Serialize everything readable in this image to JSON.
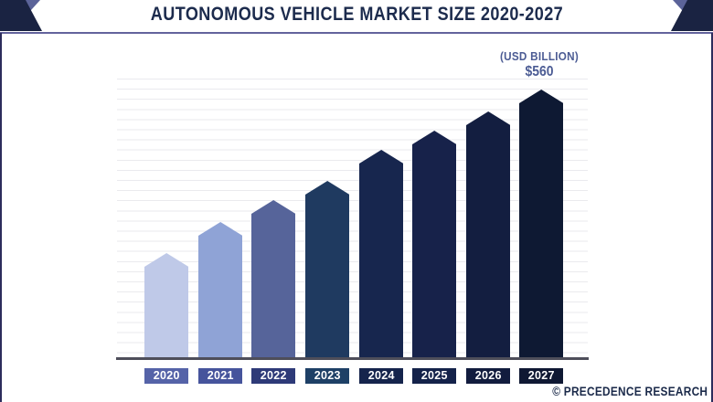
{
  "page": {
    "title": "AUTONOMOUS VEHICLE MARKET SIZE 2020-2027",
    "unit_note": "(USD BILLION)",
    "peak_value_label": "$560",
    "credit": "© PRECEDENCE RESEARCH"
  },
  "colors": {
    "title_text": "#1c2b4d",
    "underline": "#63639c",
    "corner_navy": "#1a2342",
    "corner_slate": "#5b6399",
    "gridline": "#eaeaee",
    "axis_line": "#4e4e5a",
    "annotation_text": "#4c5c94",
    "credit_text": "#1b2a4a"
  },
  "chart_data": {
    "type": "bar",
    "title": "AUTONOMOUS VEHICLE MARKET SIZE 2020-2027",
    "unit": "USD Billion",
    "categories": [
      "2020",
      "2021",
      "2022",
      "2023",
      "2024",
      "2025",
      "2026",
      "2027"
    ],
    "values": [
      220,
      285,
      330,
      370,
      435,
      475,
      515,
      560
    ],
    "annotations": [
      {
        "category": "2027",
        "text": "$560"
      }
    ],
    "ylim": [
      0,
      600
    ],
    "grid": "horizontal-only",
    "legend": "none",
    "bar_colors": [
      "#bfc9e8",
      "#8fa3d6",
      "#56649a",
      "#1f3a60",
      "#17264e",
      "#17224a",
      "#131e40",
      "#0e1933"
    ],
    "label_colors": [
      "#5563a8",
      "#46549c",
      "#2e3a78",
      "#1e4066",
      "#15244c",
      "#14224a",
      "#121c3e",
      "#0f1833"
    ]
  }
}
